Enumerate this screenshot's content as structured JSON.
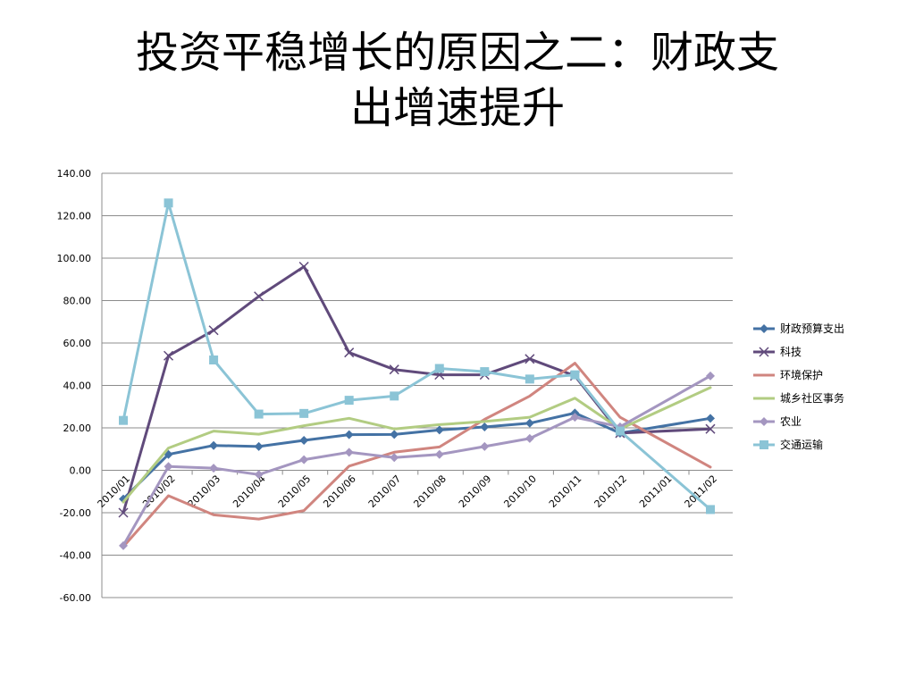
{
  "slide": {
    "title_line1": "投资平稳增长的原因之二：财政支",
    "title_line2": "出增速提升"
  },
  "chart_data": {
    "type": "line",
    "title": "",
    "xlabel": "",
    "ylabel": "",
    "ylim": [
      -60,
      140
    ],
    "yticks": [
      "140.00",
      "120.00",
      "100.00",
      "80.00",
      "60.00",
      "40.00",
      "20.00",
      "0.00",
      "-20.00",
      "-40.00",
      "-60.00"
    ],
    "ytick_values": [
      140,
      120,
      100,
      80,
      60,
      40,
      20,
      0,
      -20,
      -40,
      -60
    ],
    "grid": true,
    "legend_position": "right",
    "categories": [
      "2010/01",
      "2010/02",
      "2010/03",
      "2010/04",
      "2010/05",
      "2010/06",
      "2010/07",
      "2010/08",
      "2010/09",
      "2010/10",
      "2010/11",
      "2010/12",
      "2011/01",
      "2011/02"
    ],
    "series": [
      {
        "name": "财政预算支出",
        "color": "#4472A4",
        "marker": "diamond",
        "values": [
          -13.5,
          7.5,
          11.7,
          11.2,
          14.1,
          16.8,
          16.9,
          19.0,
          20.4,
          22.2,
          27.0,
          17.5,
          null,
          24.5
        ]
      },
      {
        "name": "科技",
        "color": "#604A7B",
        "marker": "x",
        "values": [
          -20.0,
          54.0,
          66.0,
          82.0,
          96.0,
          55.5,
          47.5,
          45.0,
          45.0,
          52.5,
          44.5,
          17.5,
          null,
          19.5
        ]
      },
      {
        "name": "环境保护",
        "color": "#D0857F",
        "marker": "none",
        "values": [
          -36.0,
          -12.0,
          -21.0,
          -23.0,
          -19.0,
          2.0,
          8.5,
          11.0,
          24.0,
          35.0,
          50.5,
          25.0,
          null,
          1.5
        ]
      },
      {
        "name": "城乡社区事务",
        "color": "#B2CC82",
        "marker": "none",
        "values": [
          -15.0,
          10.5,
          18.5,
          17.0,
          21.0,
          24.5,
          19.5,
          21.5,
          23.0,
          25.0,
          34.0,
          19.5,
          null,
          39.0
        ]
      },
      {
        "name": "农业",
        "color": "#A496C0",
        "marker": "diamond",
        "values": [
          -35.5,
          1.8,
          1.0,
          -2.0,
          5.0,
          8.5,
          6.0,
          7.5,
          11.2,
          15.0,
          25.0,
          20.5,
          null,
          44.5
        ]
      },
      {
        "name": "交通运输",
        "color": "#8BC4D6",
        "marker": "square",
        "values": [
          23.5,
          126.0,
          52.0,
          26.5,
          26.8,
          33.0,
          35.0,
          48.0,
          46.5,
          43.0,
          45.0,
          18.5,
          null,
          -18.5
        ]
      }
    ]
  }
}
